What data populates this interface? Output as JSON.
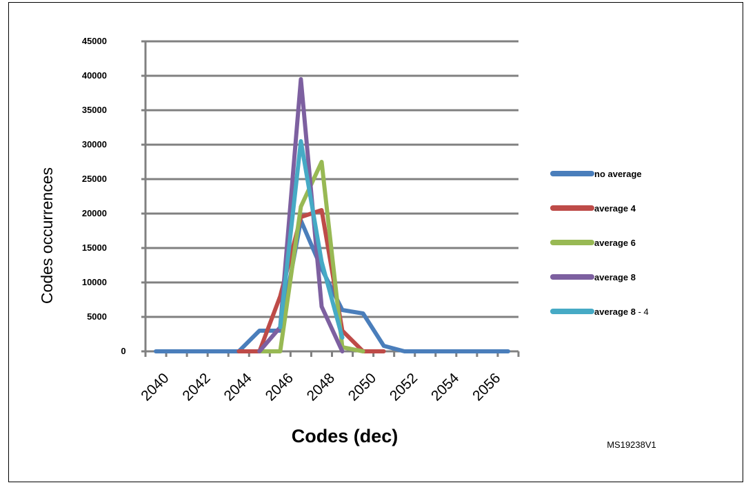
{
  "chart_data": {
    "type": "line",
    "xlabel": "Codes (dec)",
    "ylabel": "Codes occurrences",
    "ylim": [
      0,
      45000
    ],
    "xlim": [
      2039.5,
      2057.5
    ],
    "yticks": [
      0,
      5000,
      10000,
      15000,
      20000,
      25000,
      30000,
      35000,
      40000,
      45000
    ],
    "xticks": [
      2040,
      2042,
      2044,
      2046,
      2048,
      2050,
      2052,
      2054,
      2056
    ],
    "grid": "horizontal",
    "legend_position": "right",
    "x": [
      2040,
      2041,
      2042,
      2043,
      2044,
      2045,
      2046,
      2047,
      2048,
      2049,
      2050,
      2051,
      2052,
      2053,
      2054,
      2055,
      2056,
      2057
    ],
    "series": [
      {
        "name": "no average",
        "color": "#4a7ebb",
        "values": [
          0,
          0,
          0,
          0,
          0,
          3000,
          3000,
          19000,
          12000,
          6000,
          5500,
          800,
          0,
          0,
          0,
          0,
          0,
          0
        ]
      },
      {
        "name": "average 4",
        "color": "#be4b48",
        "values": [
          null,
          null,
          null,
          null,
          0,
          0,
          8000,
          19500,
          20500,
          3000,
          0,
          0,
          null,
          null,
          null,
          null,
          null,
          null
        ]
      },
      {
        "name": "average 6",
        "color": "#98b954",
        "values": [
          null,
          null,
          null,
          null,
          null,
          0,
          0,
          21000,
          27500,
          600,
          0,
          null,
          null,
          null,
          null,
          null,
          null,
          null
        ]
      },
      {
        "name": "average 8",
        "color": "#7d60a0",
        "values": [
          null,
          null,
          null,
          null,
          null,
          0,
          3500,
          39500,
          6500,
          0,
          null,
          null,
          null,
          null,
          null,
          null,
          null,
          null
        ]
      },
      {
        "name": "average 8",
        "name_suffix": "- 4",
        "color": "#46aac5",
        "values": [
          null,
          null,
          null,
          null,
          null,
          null,
          3500,
          30500,
          13000,
          2000,
          null,
          null,
          null,
          null,
          null,
          null,
          null,
          null
        ]
      }
    ]
  },
  "figure_id": "MS19238V1"
}
